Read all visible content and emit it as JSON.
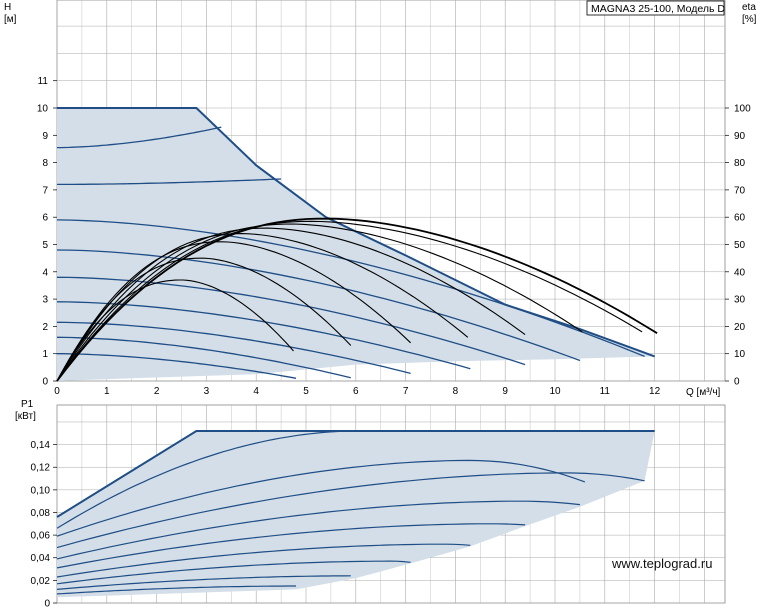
{
  "model_label": "MAGNA3 25-100, Модель D",
  "website": "www.teplograd.ru",
  "colors": {
    "fill": "#d3dee8",
    "curve": "#1f4e86",
    "eta": "#000000",
    "grid": "#aaaaaa"
  },
  "chart_data": [
    {
      "type": "line",
      "ylabel": "H",
      "yunit": "[м]",
      "y2label": "eta",
      "y2unit": "[%]",
      "xlabel": "Q [м³/ч]",
      "xlim": [
        0,
        13.4
      ],
      "ylim": [
        0,
        13.5
      ],
      "y2lim": [
        0,
        135
      ],
      "xticks": [
        "0",
        "1",
        "2",
        "3",
        "4",
        "5",
        "6",
        "7",
        "8",
        "9",
        "10",
        "11",
        "12"
      ],
      "yticks": [
        "0",
        "1",
        "2",
        "3",
        "4",
        "5",
        "6",
        "7",
        "8",
        "9",
        "10",
        "11"
      ],
      "y2ticks": [
        "0",
        "10",
        "20",
        "30",
        "40",
        "50",
        "60",
        "70",
        "80",
        "90",
        "100"
      ],
      "envelope_series": {
        "name": "max",
        "points": [
          [
            0,
            10
          ],
          [
            2.8,
            10
          ],
          [
            4,
            7.9
          ],
          [
            5.4,
            6.0
          ],
          [
            7,
            4.6
          ],
          [
            9,
            2.8
          ],
          [
            10.5,
            1.9
          ],
          [
            12,
            0.9
          ]
        ]
      },
      "low_series": {
        "points": [
          [
            0,
            0
          ],
          [
            1.5,
            0.1
          ],
          [
            4,
            0.25
          ],
          [
            6,
            0.6
          ],
          [
            8,
            0.72
          ],
          [
            10,
            0.8
          ],
          [
            12,
            0.9
          ]
        ]
      },
      "head_series": [
        {
          "shutoff": 1.0,
          "end": [
            4.8,
            0.1
          ]
        },
        {
          "shutoff": 1.6,
          "end": [
            5.9,
            0.12
          ]
        },
        {
          "shutoff": 2.15,
          "end": [
            7.1,
            0.28
          ]
        },
        {
          "shutoff": 2.9,
          "end": [
            8.3,
            0.45
          ]
        },
        {
          "shutoff": 3.8,
          "end": [
            9.4,
            0.6
          ]
        },
        {
          "shutoff": 4.8,
          "end": [
            10.5,
            0.75
          ]
        },
        {
          "shutoff": 5.9,
          "end": [
            11.8,
            0.9
          ]
        },
        {
          "shutoff": 7.2,
          "end": [
            4.5,
            7.4
          ]
        },
        {
          "shutoff": 8.55,
          "end": [
            3.3,
            9.3
          ]
        }
      ],
      "eta_series": [
        {
          "peak_q": 2.5,
          "peak": 37,
          "end": [
            4.75,
            11
          ]
        },
        {
          "peak_q": 2.9,
          "peak": 45,
          "end": [
            5.9,
            13
          ]
        },
        {
          "peak_q": 3.3,
          "peak": 51,
          "end": [
            7.1,
            14
          ]
        },
        {
          "peak_q": 3.7,
          "peak": 54,
          "end": [
            8.25,
            16
          ]
        },
        {
          "peak_q": 4.2,
          "peak": 56,
          "end": [
            9.4,
            17
          ]
        },
        {
          "peak_q": 4.7,
          "peak": 57.5,
          "end": [
            10.55,
            18
          ]
        },
        {
          "peak_q": 5.1,
          "peak": 58.5,
          "end": [
            11.75,
            18
          ]
        },
        {
          "peak_q": 5.4,
          "peak": 59.5,
          "end": [
            12.05,
            17.5
          ]
        }
      ]
    },
    {
      "type": "line",
      "ylabel": "P1",
      "yunit": "[кВт]",
      "xlim": [
        0,
        13.4
      ],
      "ylim": [
        0,
        0.175
      ],
      "yticks": [
        "0",
        "0,02",
        "0,04",
        "0,06",
        "0,08",
        "0,10",
        "0,12",
        "0,14"
      ],
      "max_power": 0.152,
      "envelope_series": {
        "points": [
          [
            0,
            0.076
          ],
          [
            2.8,
            0.152
          ],
          [
            12,
            0.152
          ]
        ]
      },
      "low_series": {
        "points": [
          [
            0,
            0.005
          ],
          [
            4.8,
            0.012
          ],
          [
            6,
            0.022
          ],
          [
            7.1,
            0.035
          ],
          [
            8.3,
            0.05
          ],
          [
            9.4,
            0.068
          ],
          [
            10.5,
            0.085
          ],
          [
            11.8,
            0.108
          ],
          [
            12,
            0.152
          ]
        ]
      },
      "power_series": [
        {
          "start": 0.008,
          "peak_q": 4.8,
          "peak": 0.015,
          "end": [
            4.8,
            0.015
          ]
        },
        {
          "start": 0.012,
          "peak_q": 5.9,
          "peak": 0.024,
          "end": [
            5.9,
            0.024
          ]
        },
        {
          "start": 0.017,
          "peak_q": 6.7,
          "peak": 0.037,
          "end": [
            7.1,
            0.036
          ]
        },
        {
          "start": 0.023,
          "peak_q": 7.8,
          "peak": 0.052,
          "end": [
            8.3,
            0.051
          ]
        },
        {
          "start": 0.031,
          "peak_q": 8.7,
          "peak": 0.07,
          "end": [
            9.4,
            0.069
          ]
        },
        {
          "start": 0.039,
          "peak_q": 9.3,
          "peak": 0.09,
          "end": [
            10.5,
            0.087
          ]
        },
        {
          "start": 0.049,
          "peak_q": 10.2,
          "peak": 0.115,
          "end": [
            11.8,
            0.108
          ]
        },
        {
          "start": 0.059,
          "peak_q": 8.3,
          "peak": 0.126,
          "end": [
            10.6,
            0.107
          ]
        },
        {
          "start": 0.066,
          "peak_q": 6.0,
          "peak": 0.152,
          "end": [
            6.2,
            0.152
          ]
        }
      ]
    }
  ]
}
